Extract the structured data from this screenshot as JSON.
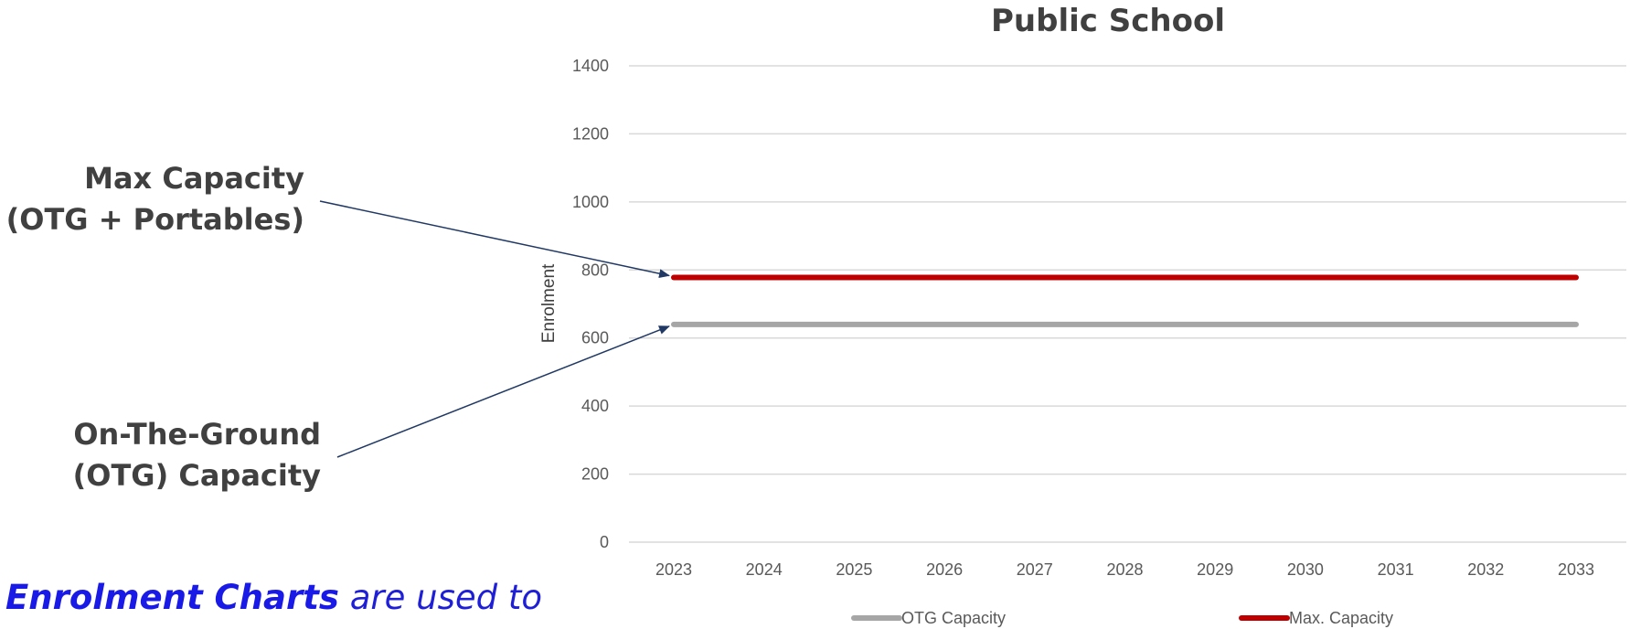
{
  "chart_data": {
    "type": "line",
    "title": "Public School",
    "ylabel": "Enrolment",
    "xlabel": "",
    "x": [
      "2023",
      "2024",
      "2025",
      "2026",
      "2027",
      "2028",
      "2029",
      "2030",
      "2031",
      "2032",
      "2033"
    ],
    "ylim": [
      0,
      1400
    ],
    "yticks": [
      0,
      200,
      400,
      600,
      800,
      1000,
      1200,
      1400
    ],
    "grid": true,
    "legend_position": "bottom",
    "series": [
      {
        "name": "OTG Capacity",
        "color": "#a6a6a6",
        "values": [
          640,
          640,
          640,
          640,
          640,
          640,
          640,
          640,
          640,
          640,
          640
        ]
      },
      {
        "name": "Max. Capacity",
        "color": "#c00000",
        "values": [
          778,
          778,
          778,
          778,
          778,
          778,
          778,
          778,
          778,
          778,
          778
        ]
      }
    ]
  },
  "annotations": {
    "max_capacity": {
      "line1": "Max Capacity",
      "line2": "(OTG + Portables)",
      "points_to_series": "Max. Capacity"
    },
    "otg_capacity": {
      "line1": "On-The-Ground",
      "line2": "(OTG) Capacity",
      "points_to_series": "OTG Capacity"
    }
  },
  "caption": {
    "bold_text": "Enrolment Charts",
    "rest_text": " are used to"
  },
  "colors": {
    "arrow": "#203864",
    "grid": "#d9d9d9",
    "caption": "#1f1fd6"
  }
}
